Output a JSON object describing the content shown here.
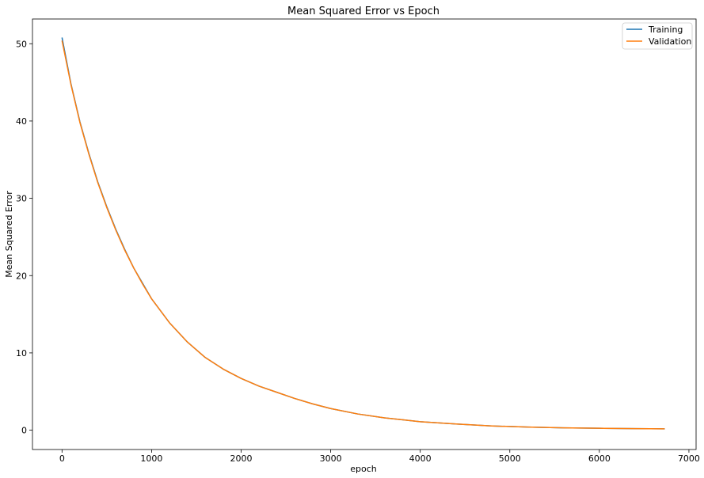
{
  "chart_data": {
    "type": "line",
    "title": "Mean Squared Error vs Epoch",
    "xlabel": "epoch",
    "ylabel": "Mean Squared Error",
    "xlim": [
      -330,
      7080
    ],
    "ylim": [
      -2.5,
      53.2
    ],
    "xticks": [
      0,
      1000,
      2000,
      3000,
      4000,
      5000,
      6000,
      7000
    ],
    "yticks": [
      0,
      10,
      20,
      30,
      40,
      50
    ],
    "grid": false,
    "legend_position": "top-right",
    "series": [
      {
        "name": "Training",
        "color": "#1f77b4",
        "x": [
          0,
          100,
          200,
          300,
          400,
          500,
          600,
          700,
          800,
          900,
          1000,
          1200,
          1400,
          1600,
          1800,
          2000,
          2200,
          2400,
          2600,
          2800,
          3000,
          3300,
          3600,
          4000,
          4400,
          4800,
          5200,
          5600,
          6000,
          6400,
          6730
        ],
        "y": [
          50.8,
          44.8,
          39.9,
          35.8,
          32.1,
          28.9,
          26.0,
          23.4,
          21.0,
          19.0,
          17.0,
          13.9,
          11.4,
          9.4,
          7.9,
          6.7,
          5.7,
          4.9,
          4.1,
          3.4,
          2.8,
          2.1,
          1.6,
          1.1,
          0.8,
          0.55,
          0.4,
          0.3,
          0.25,
          0.2,
          0.18
        ]
      },
      {
        "name": "Validation",
        "color": "#ff7f0e",
        "x": [
          0,
          100,
          200,
          300,
          400,
          500,
          600,
          700,
          800,
          900,
          1000,
          1200,
          1400,
          1600,
          1800,
          2000,
          2200,
          2400,
          2600,
          2800,
          3000,
          3300,
          3600,
          4000,
          4400,
          4800,
          5200,
          5600,
          6000,
          6400,
          6730
        ],
        "y": [
          50.4,
          44.7,
          39.8,
          35.7,
          32.0,
          28.8,
          25.9,
          23.3,
          21.0,
          18.9,
          17.0,
          13.9,
          11.4,
          9.4,
          7.9,
          6.7,
          5.7,
          4.9,
          4.1,
          3.4,
          2.8,
          2.1,
          1.6,
          1.1,
          0.8,
          0.55,
          0.4,
          0.3,
          0.25,
          0.2,
          0.18
        ]
      }
    ]
  }
}
